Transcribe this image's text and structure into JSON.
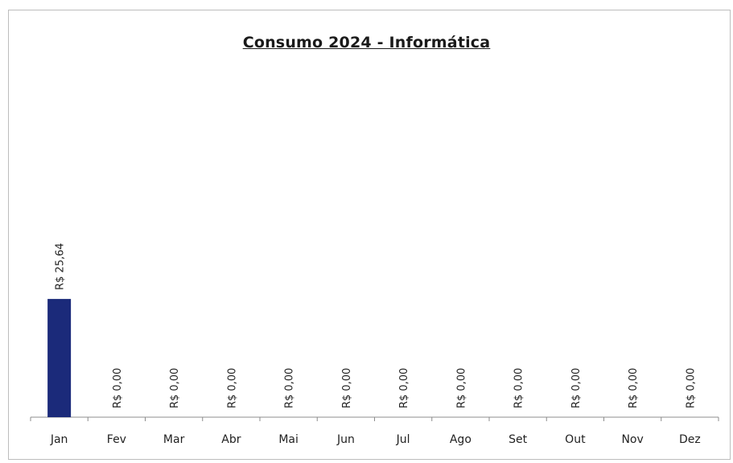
{
  "chart_data": {
    "type": "bar",
    "title": "Consumo 2024 - Informática",
    "categories": [
      "Jan",
      "Fev",
      "Mar",
      "Abr",
      "Mai",
      "Jun",
      "Jul",
      "Ago",
      "Set",
      "Out",
      "Nov",
      "Dez"
    ],
    "values": [
      25.64,
      0,
      0,
      0,
      0,
      0,
      0,
      0,
      0,
      0,
      0,
      0
    ],
    "data_labels": [
      "R$ 25,64",
      "R$ 0,00",
      "R$ 0,00",
      "R$ 0,00",
      "R$ 0,00",
      "R$ 0,00",
      "R$ 0,00",
      "R$ 0,00",
      "R$ 0,00",
      "R$ 0,00",
      "R$ 0,00",
      "R$ 0,00"
    ],
    "xlabel": "",
    "ylabel": "",
    "ylim": [
      0,
      80
    ],
    "grid": false,
    "legend": "none",
    "bar_color": "#1b2a7a"
  }
}
